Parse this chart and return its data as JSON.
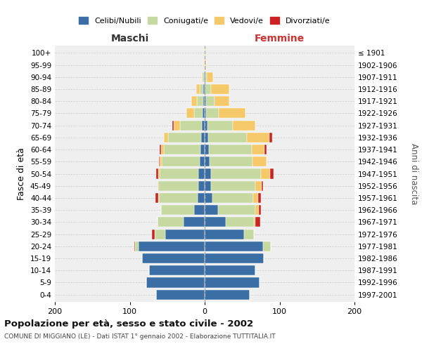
{
  "age_groups": [
    "0-4",
    "5-9",
    "10-14",
    "15-19",
    "20-24",
    "25-29",
    "30-34",
    "35-39",
    "40-44",
    "45-49",
    "50-54",
    "55-59",
    "60-64",
    "65-69",
    "70-74",
    "75-79",
    "80-84",
    "85-89",
    "90-94",
    "95-99",
    "100+"
  ],
  "birth_years": [
    "1997-2001",
    "1992-1996",
    "1987-1991",
    "1982-1986",
    "1977-1981",
    "1972-1976",
    "1967-1971",
    "1962-1966",
    "1957-1961",
    "1952-1956",
    "1947-1951",
    "1942-1946",
    "1937-1941",
    "1932-1936",
    "1927-1931",
    "1922-1926",
    "1917-1921",
    "1912-1916",
    "1907-1911",
    "1902-1906",
    "≤ 1901"
  ],
  "colors": {
    "celibi": "#3a6ea5",
    "coniugati": "#c5d9a0",
    "vedovi": "#f5c96a",
    "divorziati": "#cc2222"
  },
  "male": {
    "celibi": [
      65,
      78,
      74,
      84,
      88,
      53,
      28,
      14,
      9,
      8,
      8,
      7,
      6,
      5,
      4,
      3,
      2,
      2,
      1,
      0,
      0
    ],
    "coniugati": [
      0,
      0,
      0,
      0,
      5,
      14,
      35,
      44,
      52,
      54,
      52,
      50,
      48,
      44,
      29,
      11,
      8,
      5,
      2,
      0,
      0
    ],
    "vedovi": [
      0,
      0,
      0,
      0,
      0,
      0,
      0,
      0,
      1,
      1,
      2,
      3,
      4,
      5,
      8,
      10,
      8,
      4,
      1,
      0,
      0
    ],
    "divorziati": [
      0,
      0,
      0,
      0,
      1,
      3,
      0,
      0,
      4,
      0,
      3,
      1,
      2,
      0,
      2,
      0,
      0,
      0,
      0,
      0,
      0
    ]
  },
  "female": {
    "celibi": [
      60,
      73,
      68,
      79,
      78,
      53,
      28,
      18,
      10,
      8,
      8,
      7,
      6,
      5,
      4,
      2,
      2,
      1,
      1,
      0,
      0
    ],
    "coniugati": [
      0,
      0,
      0,
      0,
      10,
      13,
      38,
      50,
      55,
      60,
      67,
      57,
      57,
      51,
      34,
      17,
      11,
      7,
      2,
      0,
      0
    ],
    "vedovi": [
      0,
      0,
      0,
      0,
      0,
      0,
      2,
      4,
      6,
      8,
      12,
      19,
      17,
      30,
      30,
      35,
      20,
      25,
      8,
      2,
      1
    ],
    "divorziati": [
      0,
      0,
      0,
      0,
      0,
      0,
      6,
      3,
      4,
      2,
      5,
      0,
      3,
      4,
      0,
      0,
      0,
      0,
      0,
      0,
      0
    ]
  },
  "title": "Popolazione per età, sesso e stato civile - 2002",
  "subtitle": "COMUNE DI MIGGIANO (LE) - Dati ISTAT 1° gennaio 2002 - Elaborazione TUTTITALIA.IT",
  "ylabel_left": "Fasce di età",
  "ylabel_right": "Anni di nascita",
  "xlabel_left": "Maschi",
  "xlabel_right": "Femmine",
  "xlim": 200,
  "legend_labels": [
    "Celibi/Nubili",
    "Coniugati/e",
    "Vedovi/e",
    "Divorziati/e"
  ],
  "background_color": "#ffffff",
  "plot_bg_color": "#efefef",
  "grid_color": "#cccccc"
}
